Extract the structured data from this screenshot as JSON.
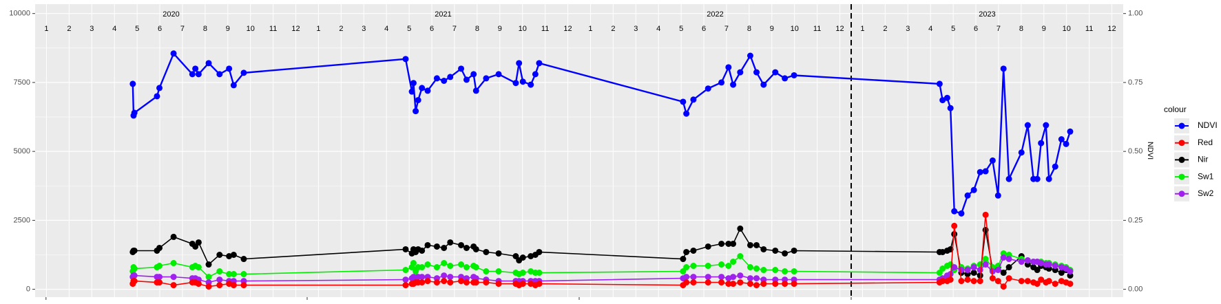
{
  "chart_data": {
    "type": "line",
    "x": [
      2020.359,
      2020.362,
      2020.365,
      2020.448,
      2020.457,
      2020.509,
      2020.578,
      2020.589,
      2020.601,
      2020.638,
      2020.678,
      2020.713,
      2020.73,
      2020.767,
      2021.362,
      2021.385,
      2021.391,
      2021.399,
      2021.408,
      2021.422,
      2021.443,
      2021.477,
      2021.503,
      2021.526,
      2021.566,
      2021.586,
      2021.612,
      2021.621,
      2021.658,
      2021.704,
      2021.767,
      2021.779,
      2021.793,
      2021.822,
      2021.839,
      2021.853,
      2022.382,
      2022.394,
      2022.42,
      2022.474,
      2022.523,
      2022.549,
      2022.566,
      2022.592,
      2022.629,
      2022.652,
      2022.678,
      2022.721,
      2022.756,
      2022.79,
      2023.325,
      2023.336,
      2023.353,
      2023.365,
      2023.379,
      2023.405,
      2023.428,
      2023.451,
      2023.474,
      2023.494,
      2023.52,
      2023.54,
      2023.56,
      2023.58,
      2023.626,
      2023.649,
      2023.67,
      2023.684,
      2023.698,
      2023.716,
      2023.727,
      2023.75,
      2023.773,
      2023.79,
      2023.805
    ],
    "series": [
      {
        "name": "Nir",
        "color": "#000000",
        "values": [
          1350,
          1400,
          1400,
          1400,
          1500,
          1900,
          1650,
          1550,
          1700,
          900,
          1250,
          1200,
          1250,
          1100,
          1450,
          1300,
          1450,
          1350,
          1450,
          1400,
          1600,
          1550,
          1500,
          1700,
          1600,
          1500,
          1550,
          1450,
          1350,
          1300,
          1200,
          1050,
          1150,
          1200,
          1250,
          1350,
          1100,
          1350,
          1400,
          1550,
          1650,
          1650,
          1650,
          2200,
          1600,
          1600,
          1450,
          1400,
          1300,
          1400,
          1350,
          1350,
          1400,
          1450,
          2000,
          600,
          550,
          600,
          500,
          2150,
          700,
          800,
          600,
          800,
          1200,
          900,
          800,
          700,
          850,
          800,
          750,
          700,
          600,
          700,
          500
        ]
      },
      {
        "name": "Sw1",
        "color": "#00ee00",
        "values": [
          650,
          800,
          750,
          800,
          850,
          950,
          800,
          850,
          800,
          450,
          650,
          550,
          550,
          550,
          700,
          800,
          950,
          650,
          800,
          800,
          900,
          800,
          950,
          850,
          900,
          800,
          850,
          800,
          650,
          650,
          600,
          550,
          600,
          650,
          600,
          600,
          650,
          800,
          850,
          850,
          900,
          850,
          1000,
          1200,
          800,
          750,
          700,
          700,
          650,
          650,
          600,
          750,
          850,
          900,
          700,
          800,
          750,
          850,
          900,
          1100,
          800,
          850,
          1300,
          1250,
          1100,
          1050,
          1000,
          1000,
          1000,
          950,
          950,
          900,
          850,
          800,
          700
        ]
      },
      {
        "name": "Sw2",
        "color": "#a020f0",
        "values": [
          450,
          500,
          500,
          450,
          450,
          450,
          400,
          400,
          350,
          250,
          350,
          300,
          300,
          300,
          350,
          400,
          450,
          400,
          450,
          450,
          450,
          400,
          500,
          450,
          450,
          400,
          450,
          400,
          350,
          300,
          300,
          300,
          300,
          300,
          300,
          300,
          400,
          450,
          450,
          450,
          450,
          400,
          450,
          500,
          400,
          400,
          350,
          350,
          350,
          350,
          350,
          400,
          500,
          550,
          800,
          700,
          700,
          800,
          700,
          900,
          650,
          700,
          1150,
          1100,
          1000,
          1050,
          1000,
          1000,
          950,
          900,
          900,
          850,
          800,
          750,
          650
        ]
      },
      {
        "name": "Red",
        "color": "#ff0000",
        "values": [
          200,
          300,
          300,
          250,
          250,
          150,
          250,
          250,
          200,
          100,
          150,
          200,
          150,
          150,
          150,
          200,
          200,
          250,
          250,
          250,
          300,
          250,
          300,
          250,
          300,
          250,
          250,
          250,
          250,
          200,
          200,
          150,
          200,
          200,
          150,
          200,
          150,
          250,
          250,
          250,
          250,
          200,
          200,
          250,
          200,
          150,
          200,
          200,
          200,
          200,
          250,
          300,
          300,
          350,
          2300,
          300,
          350,
          300,
          300,
          2700,
          400,
          300,
          100,
          400,
          300,
          300,
          250,
          200,
          350,
          250,
          300,
          200,
          300,
          250,
          200
        ]
      },
      {
        "name": "NDVI",
        "color": "#0000ff",
        "axis": "y2",
        "values": [
          0.745,
          0.63,
          0.64,
          0.7,
          0.73,
          0.855,
          0.78,
          0.8,
          0.78,
          0.82,
          0.78,
          0.8,
          0.74,
          0.785,
          0.835,
          0.717,
          0.748,
          0.646,
          0.686,
          0.73,
          0.72,
          0.765,
          0.756,
          0.77,
          0.8,
          0.76,
          0.78,
          0.72,
          0.765,
          0.78,
          0.748,
          0.82,
          0.753,
          0.742,
          0.78,
          0.82,
          0.68,
          0.637,
          0.688,
          0.728,
          0.75,
          0.805,
          0.742,
          0.787,
          0.847,
          0.787,
          0.742,
          0.787,
          0.765,
          0.776,
          0.745,
          0.686,
          0.694,
          0.657,
          0.283,
          0.275,
          0.34,
          0.36,
          0.425,
          0.428,
          0.467,
          0.34,
          0.8,
          0.4,
          0.496,
          0.595,
          0.4,
          0.4,
          0.53,
          0.595,
          0.4,
          0.445,
          0.544,
          0.527,
          0.572
        ]
      }
    ],
    "legend_order": [
      4,
      3,
      0,
      1,
      2
    ],
    "legend_title": "colour",
    "y2_label": "NDVI",
    "xlim": [
      2020.0,
      2024.0
    ],
    "xticks": [
      2020.04,
      2021.0,
      2022.0,
      2023.0
    ],
    "ylim": [
      -284,
      10341
    ],
    "yticks": [
      0,
      2500,
      5000,
      7500,
      10000
    ],
    "y2lim": [
      -0.0284,
      1.0341
    ],
    "y2ticks": [
      {
        "value": 0,
        "label": "0.00"
      },
      {
        "value": 0.25,
        "label": "0.25"
      },
      {
        "value": 0.5,
        "label": "0.50"
      },
      {
        "value": 0.75,
        "label": "0.75"
      },
      {
        "value": 1,
        "label": "1.00"
      }
    ],
    "years": [
      2020,
      2021,
      2022,
      2023
    ],
    "months": [
      1,
      2,
      3,
      4,
      5,
      6,
      7,
      8,
      9,
      10,
      11,
      12
    ],
    "vline": 2023.0,
    "grid": true
  }
}
